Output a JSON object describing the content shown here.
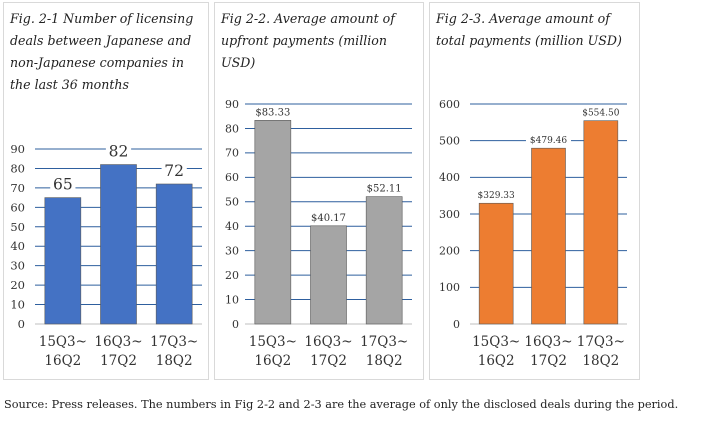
{
  "chart_data": [
    {
      "type": "bar",
      "title": "Fig. 2-1 Number of licensing deals between Japanese and non-Japanese companies in the last 36 months",
      "categories": [
        [
          "15Q3~",
          "16Q2"
        ],
        [
          "16Q3~",
          "17Q2"
        ],
        [
          "17Q3~",
          "18Q2"
        ]
      ],
      "values": [
        65,
        82,
        72
      ],
      "data_labels": [
        "65",
        "82",
        "72"
      ],
      "ylim": [
        0,
        90
      ],
      "yticks": [
        0,
        10,
        20,
        30,
        40,
        50,
        60,
        70,
        80,
        90
      ],
      "grid": true,
      "color": "#4472c4"
    },
    {
      "type": "bar",
      "title": "Fig 2-2. Average amount of upfront payments (million USD)",
      "categories": [
        [
          "15Q3~",
          "16Q2"
        ],
        [
          "16Q3~",
          "17Q2"
        ],
        [
          "17Q3~",
          "18Q2"
        ]
      ],
      "values": [
        83.33,
        40.17,
        52.11
      ],
      "data_labels": [
        "$83.33",
        "$40.17",
        "$52.11"
      ],
      "ylim": [
        0,
        90
      ],
      "yticks": [
        0,
        10,
        20,
        30,
        40,
        50,
        60,
        70,
        80,
        90
      ],
      "grid": true,
      "color": "#a5a5a5"
    },
    {
      "type": "bar",
      "title": "Fig 2-3. Average amount of total payments (million USD)",
      "categories": [
        [
          "15Q3~",
          "16Q2"
        ],
        [
          "16Q3~",
          "17Q2"
        ],
        [
          "17Q3~",
          "18Q2"
        ]
      ],
      "values": [
        329.33,
        479.46,
        554.5
      ],
      "data_labels": [
        "$329.33",
        "$479.46",
        "$554.50"
      ],
      "ylim": [
        0,
        600
      ],
      "yticks": [
        0,
        100,
        200,
        300,
        400,
        500,
        600
      ],
      "grid": true,
      "color": "#ed7d31"
    }
  ],
  "source_note": "Source: Press releases. The numbers in Fig 2-2 and 2-3 are the average of only the disclosed deals during the period."
}
